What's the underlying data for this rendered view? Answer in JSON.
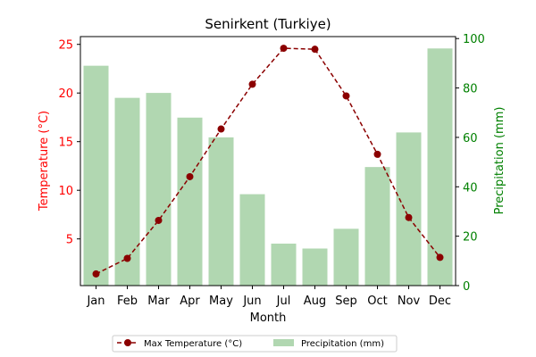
{
  "chart_data": {
    "type": "bar+line",
    "title": "Senirkent (Turkiye)",
    "xlabel": "Month",
    "categories": [
      "Jan",
      "Feb",
      "Mar",
      "Apr",
      "May",
      "Jun",
      "Jul",
      "Aug",
      "Sep",
      "Oct",
      "Nov",
      "Dec"
    ],
    "series": [
      {
        "name": "Max Temperature (°C)",
        "type": "line",
        "axis": "left",
        "values": [
          1.4,
          3.0,
          6.9,
          11.4,
          16.3,
          20.9,
          24.6,
          24.5,
          19.7,
          13.7,
          7.2,
          3.1
        ],
        "color": "#8b0000",
        "line_style": "dashed",
        "marker": "circle"
      },
      {
        "name": "Precipitation (mm)",
        "type": "bar",
        "axis": "right",
        "values": [
          89,
          76,
          78,
          68,
          60,
          37,
          17,
          15,
          23,
          48,
          62,
          96
        ],
        "color": "#b1d7b1"
      }
    ],
    "y_left": {
      "label": "Temperature (°C)",
      "color": "#ff0000",
      "ylim": [
        0.2,
        25.8
      ],
      "ticks": [
        5,
        10,
        15,
        20,
        25
      ]
    },
    "y_right": {
      "label": "Precipitation (mm)",
      "color": "#008000",
      "ylim": [
        0,
        100.8
      ],
      "ticks": [
        0,
        20,
        40,
        60,
        80,
        100
      ]
    },
    "legend": {
      "placement": "bottom-center",
      "columns": 2
    },
    "grid": false
  }
}
